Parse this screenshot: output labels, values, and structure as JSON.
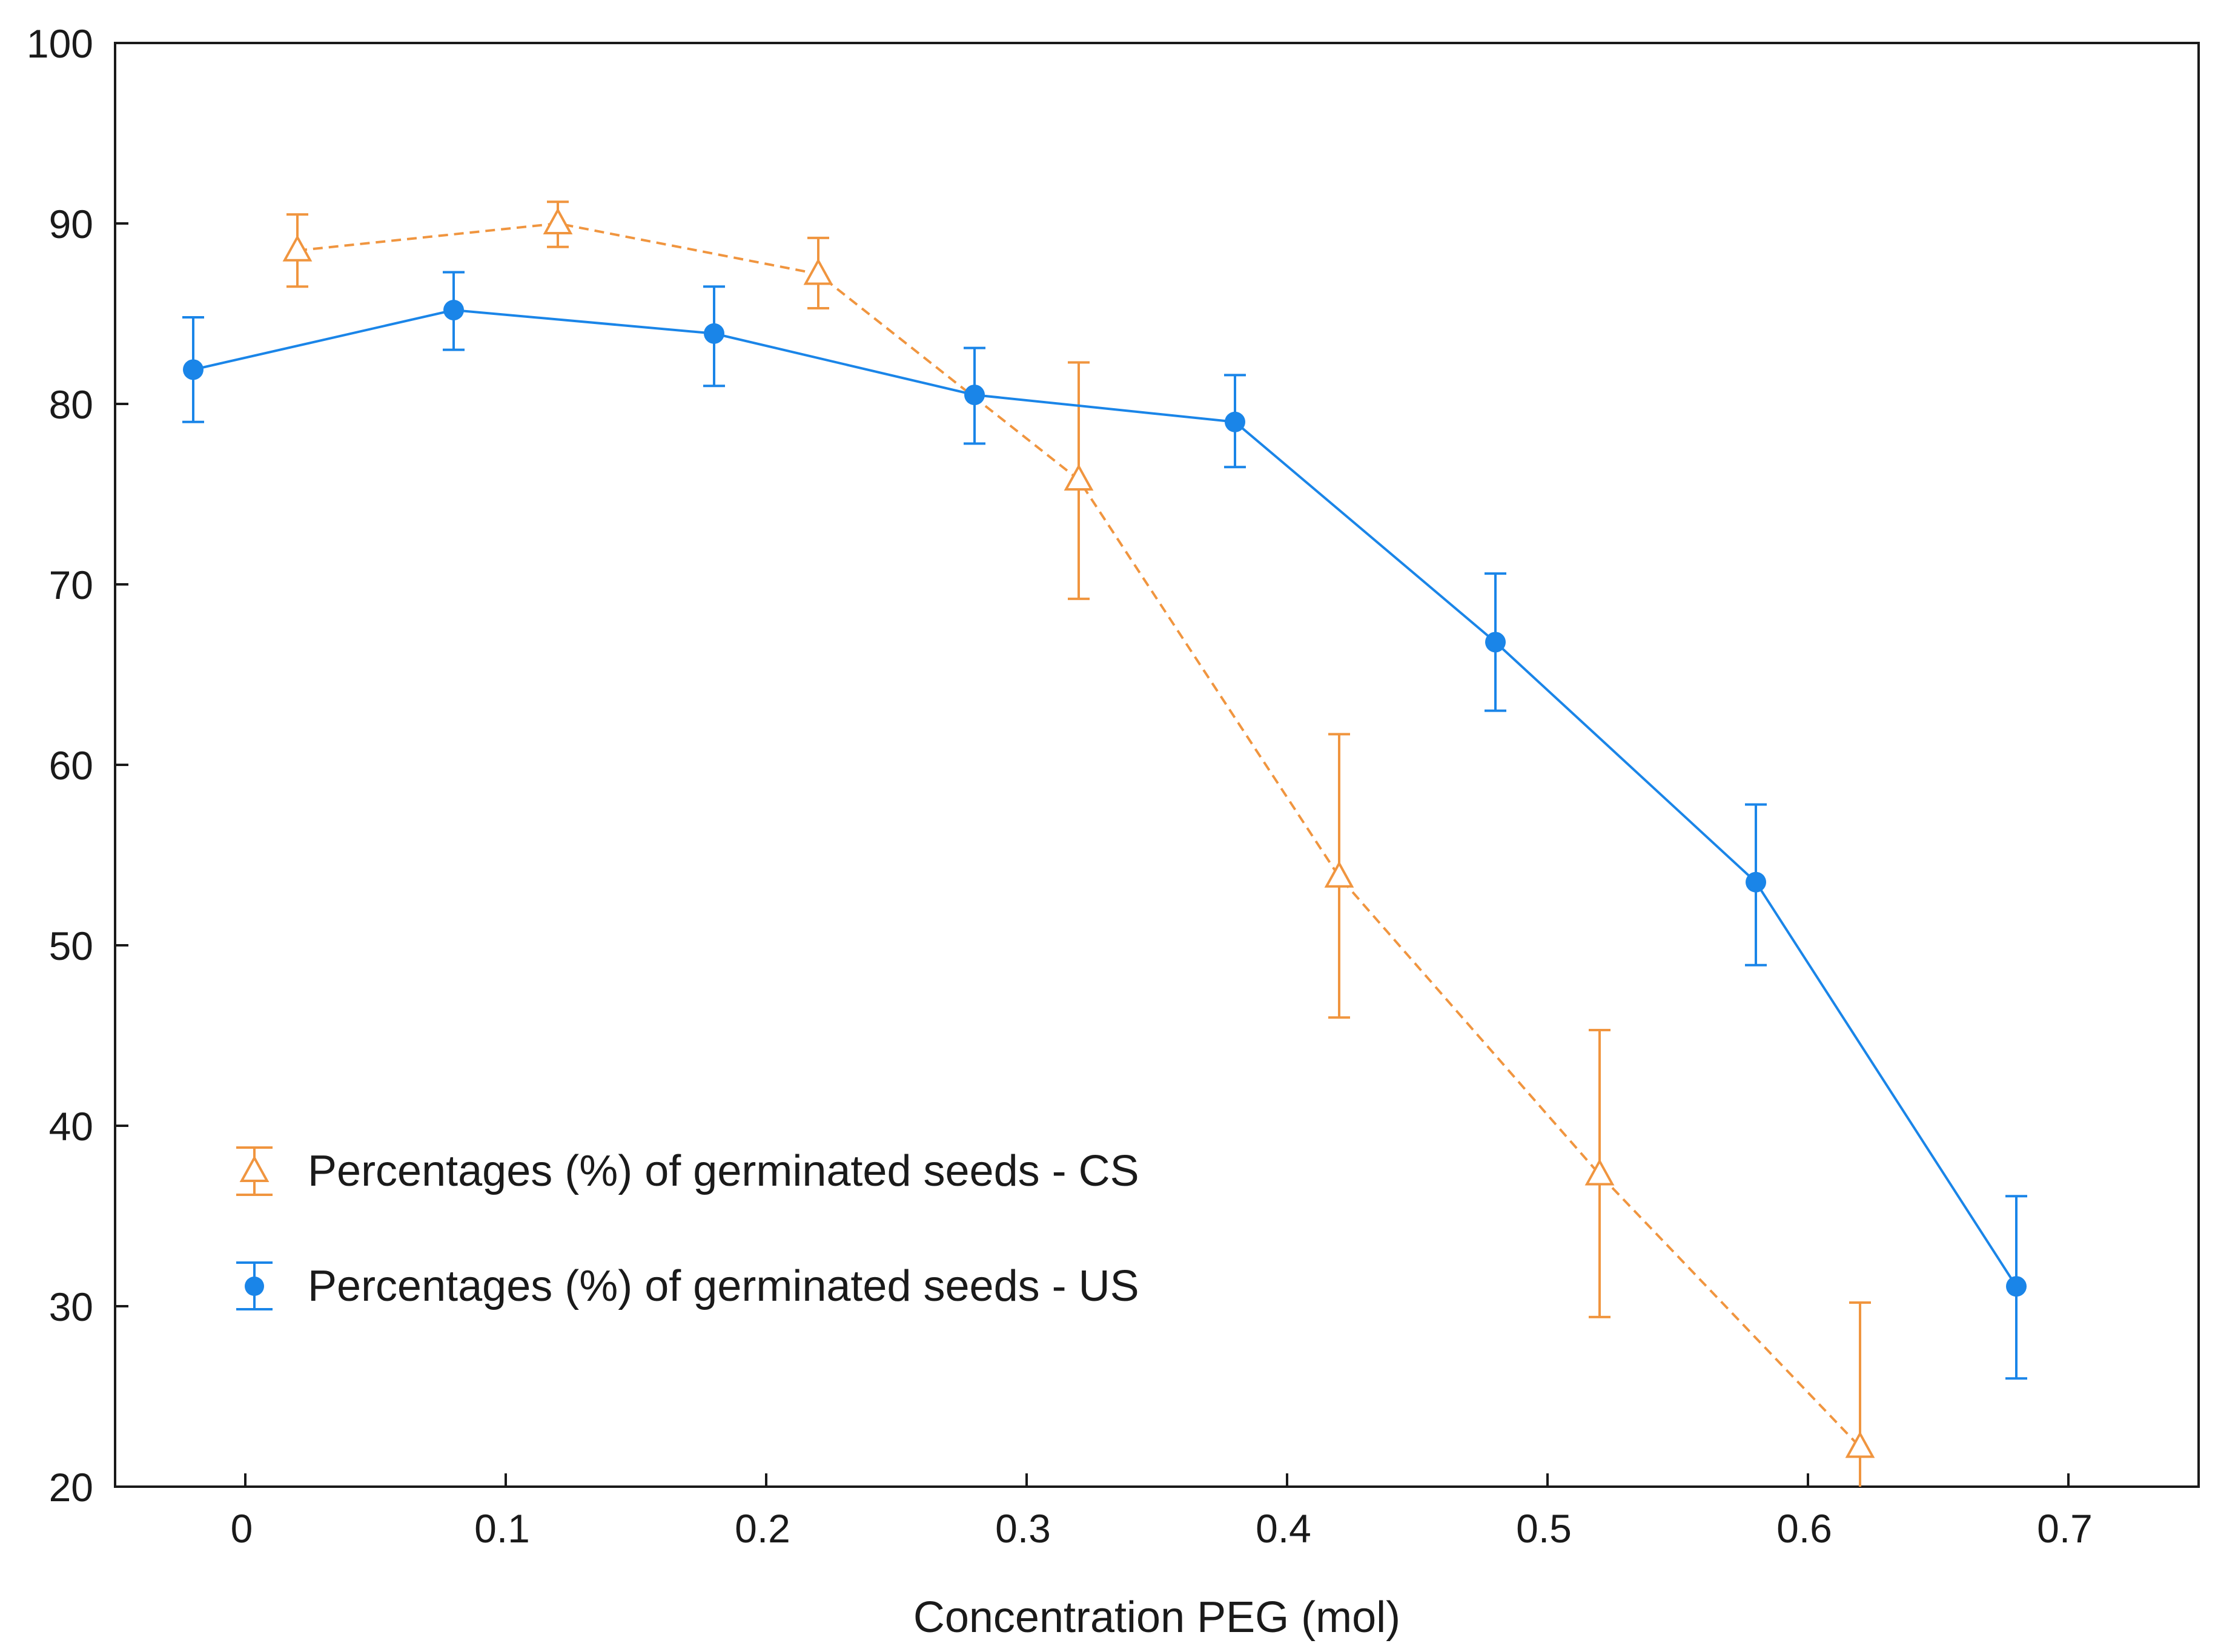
{
  "chart_data": {
    "type": "line",
    "title": "",
    "xlabel": "Concentration PEG (mol)",
    "ylabel": "",
    "xlim": [
      -0.05,
      0.75
    ],
    "ylim": [
      20,
      100
    ],
    "xticks": [
      0,
      0.1,
      0.2,
      0.3,
      0.4,
      0.5,
      0.6,
      0.7
    ],
    "xtick_labels": [
      "0",
      "0.1",
      "0.2",
      "0.3",
      "0.4",
      "0.5",
      "0.6",
      "0.7"
    ],
    "yticks": [
      20,
      30,
      40,
      50,
      60,
      70,
      80,
      90,
      100
    ],
    "ytick_labels": [
      "20",
      "30",
      "40",
      "50",
      "60",
      "70",
      "80",
      "90",
      "100"
    ],
    "grid": false,
    "legend_position": "lower-left",
    "series": [
      {
        "name": "Percentages (%) of germinated seeds - CS",
        "color": "#f0953f",
        "line_style": "dashed",
        "marker": "open-triangle",
        "x": [
          0.02,
          0.12,
          0.22,
          0.32,
          0.42,
          0.52,
          0.62
        ],
        "values": [
          88.5,
          90.0,
          87.2,
          75.8,
          53.8,
          37.3,
          22.2
        ],
        "err_low": [
          86.5,
          88.7,
          85.3,
          69.2,
          46.0,
          29.4,
          20.0
        ],
        "err_high": [
          90.5,
          91.2,
          89.2,
          82.3,
          61.7,
          45.3,
          30.2
        ]
      },
      {
        "name": "Percentages (%) of germinated seeds - US",
        "color": "#1a85e8",
        "line_style": "solid",
        "marker": "filled-circle",
        "x": [
          -0.02,
          0.08,
          0.18,
          0.28,
          0.38,
          0.48,
          0.58,
          0.68
        ],
        "values": [
          81.9,
          85.2,
          83.9,
          80.5,
          79.0,
          66.8,
          53.5,
          31.1
        ],
        "err_low": [
          79.0,
          83.0,
          81.0,
          77.8,
          76.5,
          63.0,
          48.9,
          26.0
        ],
        "err_high": [
          84.8,
          87.3,
          86.5,
          83.1,
          81.6,
          70.6,
          57.8,
          36.1
        ]
      }
    ]
  }
}
